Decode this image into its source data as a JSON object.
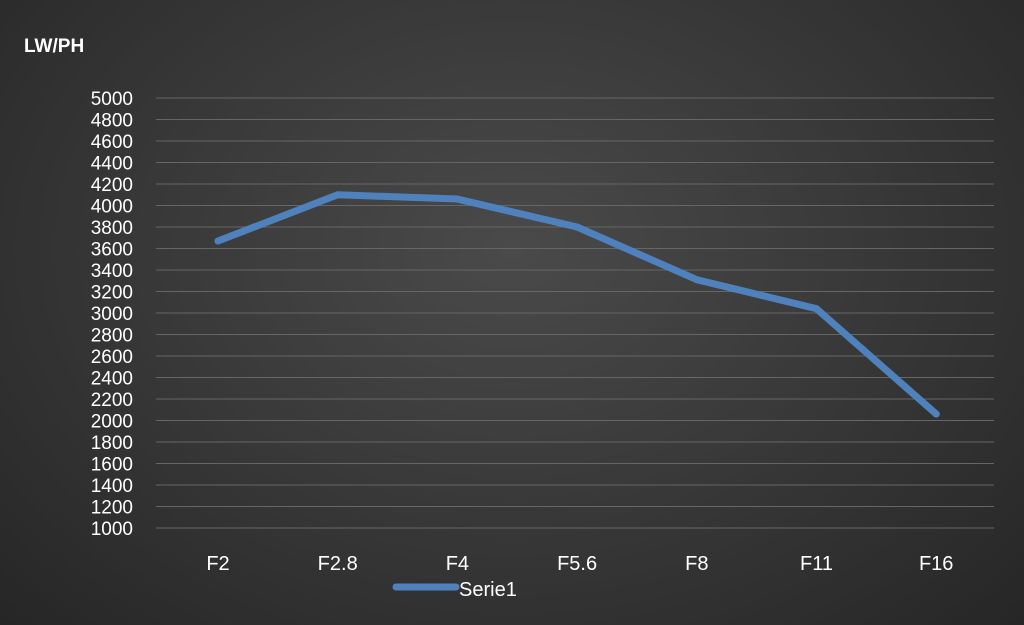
{
  "chart_data": {
    "type": "line",
    "ylabel": "LW/PH",
    "xlabel": "",
    "title": "",
    "categories": [
      "F2",
      "F2.8",
      "F4",
      "F5.6",
      "F8",
      "F11",
      "F16"
    ],
    "series": [
      {
        "name": "Serie1",
        "values": [
          3670,
          4100,
          4060,
          3800,
          3310,
          3040,
          2060
        ],
        "color": "#4f81bd"
      }
    ],
    "ylim": [
      1000,
      5000
    ],
    "ytick_step": 200,
    "yticks": [
      "1000",
      "1200",
      "1400",
      "1600",
      "1800",
      "2000",
      "2200",
      "2400",
      "2600",
      "2800",
      "3000",
      "3200",
      "3400",
      "3600",
      "3800",
      "4000",
      "4200",
      "4400",
      "4600",
      "4800",
      "5000"
    ],
    "grid": true,
    "legend": "bottom"
  },
  "colors": {
    "text": "#ffffff",
    "gridline": "#666666",
    "series": "#4f81bd"
  }
}
